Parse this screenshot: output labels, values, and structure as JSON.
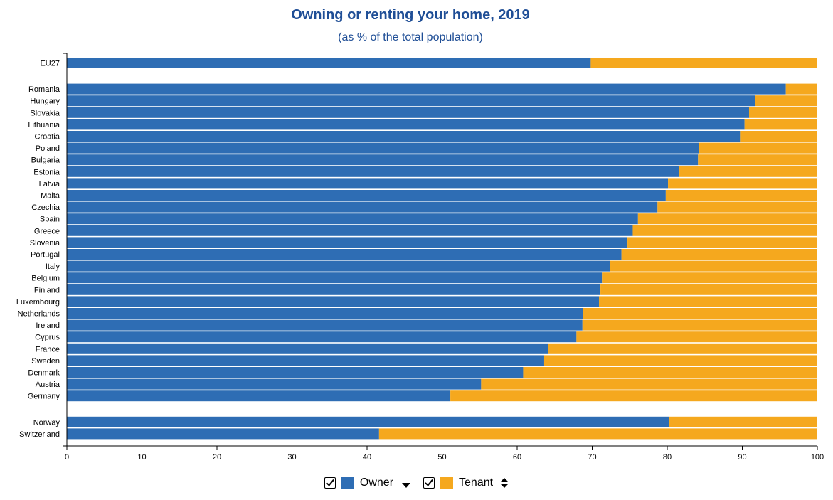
{
  "chart_data": {
    "type": "bar",
    "orientation": "horizontal",
    "stacked": true,
    "title": "Owning or renting your home, 2019",
    "subtitle": "(as % of the total population)",
    "xlim": [
      0,
      100
    ],
    "xticks": [
      0,
      10,
      20,
      30,
      40,
      50,
      60,
      70,
      80,
      90,
      100
    ],
    "groups": [
      [
        "EU27"
      ],
      [
        "Romania",
        "Hungary",
        "Slovakia",
        "Lithuania",
        "Croatia",
        "Poland",
        "Bulgaria",
        "Estonia",
        "Latvia",
        "Malta",
        "Czechia",
        "Spain",
        "Greece",
        "Slovenia",
        "Portugal",
        "Italy",
        "Belgium",
        "Finland",
        "Luxembourg",
        "Netherlands",
        "Ireland",
        "Cyprus",
        "France",
        "Sweden",
        "Denmark",
        "Austria",
        "Germany"
      ],
      [
        "Norway",
        "Switzerland"
      ]
    ],
    "categories": [
      "EU27",
      "Romania",
      "Hungary",
      "Slovakia",
      "Lithuania",
      "Croatia",
      "Poland",
      "Bulgaria",
      "Estonia",
      "Latvia",
      "Malta",
      "Czechia",
      "Spain",
      "Greece",
      "Slovenia",
      "Portugal",
      "Italy",
      "Belgium",
      "Finland",
      "Luxembourg",
      "Netherlands",
      "Ireland",
      "Cyprus",
      "France",
      "Sweden",
      "Denmark",
      "Austria",
      "Germany",
      "Norway",
      "Switzerland"
    ],
    "series": [
      {
        "name": "Owner",
        "color": "#2e6db4",
        "values": [
          69.8,
          95.8,
          91.7,
          90.9,
          90.3,
          89.7,
          84.2,
          84.1,
          81.6,
          80.1,
          79.8,
          78.7,
          76.1,
          75.4,
          74.7,
          73.9,
          72.4,
          71.3,
          71.1,
          70.9,
          68.8,
          68.7,
          67.9,
          64.1,
          63.6,
          60.8,
          55.2,
          51.1,
          80.2,
          41.6
        ]
      },
      {
        "name": "Tenant",
        "color": "#f5a81e",
        "values": [
          30.2,
          4.2,
          8.3,
          9.1,
          9.7,
          10.3,
          15.8,
          15.9,
          18.4,
          19.9,
          20.2,
          21.3,
          23.9,
          24.6,
          25.3,
          26.1,
          27.6,
          28.7,
          28.9,
          29.1,
          31.2,
          31.3,
          32.1,
          35.9,
          36.4,
          39.2,
          44.8,
          48.9,
          19.8,
          58.4
        ]
      }
    ],
    "legend_placement": "bottom-center",
    "grid": false
  }
}
